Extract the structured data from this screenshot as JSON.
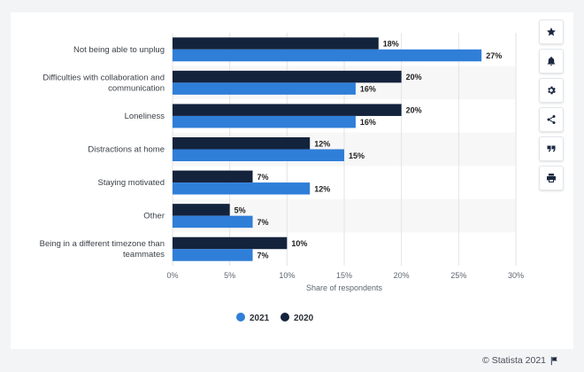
{
  "chart_data": {
    "type": "bar",
    "orientation": "horizontal",
    "categories": [
      [
        "Not being able to unplug"
      ],
      [
        "Difficulties with collaboration and",
        "communication"
      ],
      [
        "Loneliness"
      ],
      [
        "Distractions at home"
      ],
      [
        "Staying motivated"
      ],
      [
        "Other"
      ],
      [
        "Being in a different timezone than",
        "teammates"
      ]
    ],
    "series": [
      {
        "name": "2020",
        "color": "#14233c",
        "values": [
          18,
          20,
          20,
          12,
          7,
          5,
          10
        ]
      },
      {
        "name": "2021",
        "color": "#2f7ed8",
        "values": [
          27,
          16,
          16,
          15,
          12,
          7,
          7
        ]
      }
    ],
    "legend_order": [
      "2021",
      "2020"
    ],
    "legend_position": "bottom-center",
    "value_suffix": "%",
    "xlim": [
      0,
      30
    ],
    "xticks": [
      "0%",
      "5%",
      "10%",
      "15%",
      "20%",
      "25%",
      "30%"
    ],
    "xlabel": "Share of respondents",
    "ylabel": "",
    "grid": "vertical",
    "band_color": "#f7f7f7"
  },
  "sidebar": {
    "buttons": [
      {
        "icon": "star-icon"
      },
      {
        "icon": "bell-icon"
      },
      {
        "icon": "gear-icon"
      },
      {
        "icon": "share-icon"
      },
      {
        "icon": "quote-icon"
      },
      {
        "icon": "print-icon"
      }
    ]
  },
  "footer": {
    "credit": "© Statista 2021",
    "icon": "flag-icon"
  }
}
